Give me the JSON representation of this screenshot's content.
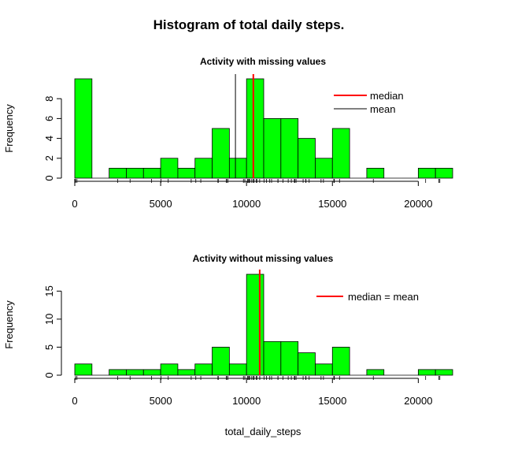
{
  "figure": {
    "title": "Histogram of total daily steps.",
    "xlabel": "total_daily_steps"
  },
  "chart_data": [
    {
      "type": "bar",
      "title": "Activity with missing values",
      "xlabel": "",
      "ylabel": "Frequency",
      "bin_width": 1000,
      "bin_starts": [
        0,
        1000,
        2000,
        3000,
        4000,
        5000,
        6000,
        7000,
        8000,
        9000,
        10000,
        11000,
        12000,
        13000,
        14000,
        15000,
        16000,
        17000,
        18000,
        19000,
        20000,
        21000
      ],
      "values": [
        10,
        0,
        1,
        1,
        1,
        2,
        1,
        2,
        5,
        2,
        10,
        6,
        6,
        4,
        2,
        5,
        0,
        1,
        0,
        0,
        1,
        1
      ],
      "xlim": [
        0,
        22000
      ],
      "ylim": [
        0,
        10
      ],
      "x_ticks": [
        0,
        5000,
        10000,
        15000,
        20000
      ],
      "x_tick_labels": [
        "0",
        "5000",
        "10000",
        "15000",
        "20000"
      ],
      "y_ticks": [
        0,
        2,
        4,
        6,
        8
      ],
      "y_tick_labels": [
        "0",
        "2",
        "4",
        "6",
        "8"
      ],
      "bar_color": "#00ff00",
      "lines": [
        {
          "name": "median",
          "value": 10395,
          "color": "#ff0000"
        },
        {
          "name": "mean",
          "value": 9354,
          "color": "#000000"
        }
      ],
      "rug": [
        0,
        0,
        0,
        0,
        0,
        0,
        0,
        0,
        41,
        126,
        2492,
        3219,
        4472,
        5018,
        5441,
        6778,
        7047,
        7336,
        8334,
        8355,
        8821,
        8841,
        8918,
        9819,
        9900,
        10056,
        10119,
        10139,
        10183,
        10304,
        10395,
        10439,
        10571,
        10600,
        10765,
        11015,
        11162,
        11352,
        11458,
        11829,
        11834,
        12116,
        12426,
        12608,
        12787,
        12811,
        12883,
        13294,
        13452,
        13460,
        13646,
        14339,
        14478,
        15084,
        15098,
        15110,
        15414,
        17382,
        20427,
        21194,
        21256
      ],
      "legend": {
        "position": "top-right",
        "entries": [
          "median",
          "mean"
        ]
      }
    },
    {
      "type": "bar",
      "title": "Activity without missing values",
      "xlabel": "",
      "ylabel": "Frequency",
      "bin_width": 1000,
      "bin_starts": [
        0,
        1000,
        2000,
        3000,
        4000,
        5000,
        6000,
        7000,
        8000,
        9000,
        10000,
        11000,
        12000,
        13000,
        14000,
        15000,
        16000,
        17000,
        18000,
        19000,
        20000,
        21000
      ],
      "values": [
        2,
        0,
        1,
        1,
        1,
        2,
        1,
        2,
        5,
        2,
        18,
        6,
        6,
        4,
        2,
        5,
        0,
        1,
        0,
        0,
        1,
        1
      ],
      "xlim": [
        0,
        22000
      ],
      "ylim": [
        0,
        18
      ],
      "x_ticks": [
        0,
        5000,
        10000,
        15000,
        20000
      ],
      "x_tick_labels": [
        "0",
        "5000",
        "10000",
        "15000",
        "20000"
      ],
      "y_ticks": [
        0,
        5,
        10,
        15
      ],
      "y_tick_labels": [
        "0",
        "5",
        "10",
        "15"
      ],
      "bar_color": "#00ff00",
      "lines": [
        {
          "name": "median = mean",
          "value": 10766,
          "color": "#ff0000"
        }
      ],
      "rug": [
        41,
        126,
        2492,
        3219,
        4472,
        5018,
        5441,
        6778,
        7047,
        7336,
        8334,
        8355,
        8821,
        8841,
        8918,
        9819,
        9900,
        10056,
        10119,
        10139,
        10183,
        10304,
        10395,
        10439,
        10571,
        10600,
        10765,
        10766,
        11015,
        11162,
        11352,
        11458,
        11829,
        11834,
        12116,
        12426,
        12608,
        12787,
        12811,
        12883,
        13294,
        13452,
        13460,
        13646,
        14339,
        14478,
        15084,
        15098,
        15110,
        15414,
        17382,
        20427,
        21194,
        21256
      ],
      "legend": {
        "position": "top-right",
        "entries": [
          "median = mean"
        ]
      }
    }
  ]
}
